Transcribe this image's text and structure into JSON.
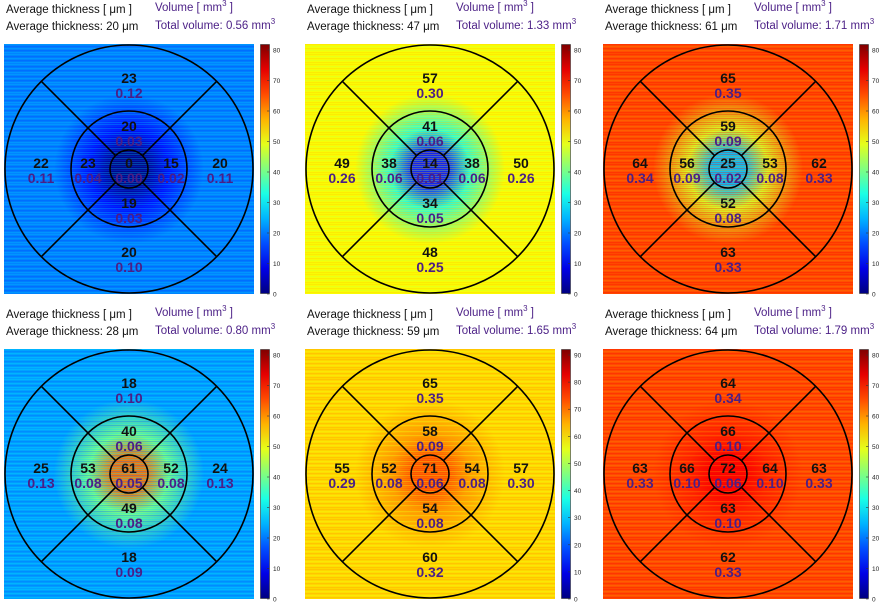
{
  "labels": {
    "avg_header": "Average thickness [ μm ]",
    "avg_prefix": "Average thickness: ",
    "unit": "μm",
    "vol_header": "Volume [ mm",
    "vol_exp": "3",
    "vol_header_close": " ]",
    "vol_prefix": "Total volume: ",
    "vol_unit": " mm"
  },
  "colors": {
    "thickness_text": "#111111",
    "volume_text": "#4b1f86",
    "grid_lines": "#000000"
  },
  "colormap": "jet",
  "panels": [
    {
      "avg_thickness": "20",
      "total_volume": "0.56",
      "colorbar": {
        "max": 80,
        "ticks": [
          "80",
          "70",
          "60",
          "50",
          "40",
          "30",
          "20",
          "10",
          "0"
        ]
      },
      "background_level": 0.25,
      "center_level": 0.0,
      "sectors": {
        "center": {
          "thickness": "0",
          "volume": "0.00"
        },
        "inner_superior": {
          "thickness": "20",
          "volume": "0.03"
        },
        "inner_nasal": {
          "thickness": "15",
          "volume": "0.02"
        },
        "inner_inferior": {
          "thickness": "19",
          "volume": "0.03"
        },
        "inner_temporal": {
          "thickness": "23",
          "volume": "0.04"
        },
        "outer_superior": {
          "thickness": "23",
          "volume": "0.12"
        },
        "outer_nasal": {
          "thickness": "20",
          "volume": "0.11"
        },
        "outer_inferior": {
          "thickness": "20",
          "volume": "0.10"
        },
        "outer_temporal": {
          "thickness": "22",
          "volume": "0.11"
        }
      }
    },
    {
      "avg_thickness": "47",
      "total_volume": "1.33",
      "colorbar": {
        "max": 80,
        "ticks": [
          "80",
          "70",
          "60",
          "50",
          "40",
          "30",
          "20",
          "10",
          "0"
        ]
      },
      "background_level": 0.62,
      "center_level": 0.15,
      "sectors": {
        "center": {
          "thickness": "14",
          "volume": "0.01"
        },
        "inner_superior": {
          "thickness": "41",
          "volume": "0.06"
        },
        "inner_nasal": {
          "thickness": "38",
          "volume": "0.06"
        },
        "inner_inferior": {
          "thickness": "34",
          "volume": "0.05"
        },
        "inner_temporal": {
          "thickness": "38",
          "volume": "0.06"
        },
        "outer_superior": {
          "thickness": "57",
          "volume": "0.30"
        },
        "outer_nasal": {
          "thickness": "50",
          "volume": "0.26"
        },
        "outer_inferior": {
          "thickness": "48",
          "volume": "0.25"
        },
        "outer_temporal": {
          "thickness": "49",
          "volume": "0.26"
        }
      }
    },
    {
      "avg_thickness": "61",
      "total_volume": "1.71",
      "colorbar": {
        "max": 80,
        "ticks": [
          "80",
          "70",
          "60",
          "50",
          "40",
          "30",
          "20",
          "10",
          "0"
        ]
      },
      "background_level": 0.8,
      "center_level": 0.32,
      "sectors": {
        "center": {
          "thickness": "25",
          "volume": "0.02"
        },
        "inner_superior": {
          "thickness": "59",
          "volume": "0.09"
        },
        "inner_nasal": {
          "thickness": "53",
          "volume": "0.08"
        },
        "inner_inferior": {
          "thickness": "52",
          "volume": "0.08"
        },
        "inner_temporal": {
          "thickness": "56",
          "volume": "0.09"
        },
        "outer_superior": {
          "thickness": "65",
          "volume": "0.35"
        },
        "outer_nasal": {
          "thickness": "62",
          "volume": "0.33"
        },
        "outer_inferior": {
          "thickness": "63",
          "volume": "0.33"
        },
        "outer_temporal": {
          "thickness": "64",
          "volume": "0.34"
        }
      }
    },
    {
      "avg_thickness": "28",
      "total_volume": "0.80",
      "colorbar": {
        "max": 80,
        "ticks": [
          "80",
          "70",
          "60",
          "50",
          "40",
          "30",
          "20",
          "10",
          "0"
        ]
      },
      "background_level": 0.28,
      "center_level": 0.76,
      "sectors": {
        "center": {
          "thickness": "61",
          "volume": "0.05"
        },
        "inner_superior": {
          "thickness": "40",
          "volume": "0.06"
        },
        "inner_nasal": {
          "thickness": "52",
          "volume": "0.08"
        },
        "inner_inferior": {
          "thickness": "49",
          "volume": "0.08"
        },
        "inner_temporal": {
          "thickness": "53",
          "volume": "0.08"
        },
        "outer_superior": {
          "thickness": "18",
          "volume": "0.10"
        },
        "outer_nasal": {
          "thickness": "24",
          "volume": "0.13"
        },
        "outer_inferior": {
          "thickness": "18",
          "volume": "0.09"
        },
        "outer_temporal": {
          "thickness": "25",
          "volume": "0.13"
        }
      }
    },
    {
      "avg_thickness": "59",
      "total_volume": "1.65",
      "colorbar": {
        "max": 90,
        "ticks": [
          "90",
          "80",
          "70",
          "60",
          "50",
          "40",
          "30",
          "20",
          "10",
          "0"
        ]
      },
      "background_level": 0.66,
      "center_level": 0.8,
      "sectors": {
        "center": {
          "thickness": "71",
          "volume": "0.06"
        },
        "inner_superior": {
          "thickness": "58",
          "volume": "0.09"
        },
        "inner_nasal": {
          "thickness": "54",
          "volume": "0.08"
        },
        "inner_inferior": {
          "thickness": "54",
          "volume": "0.08"
        },
        "inner_temporal": {
          "thickness": "52",
          "volume": "0.08"
        },
        "outer_superior": {
          "thickness": "65",
          "volume": "0.35"
        },
        "outer_nasal": {
          "thickness": "57",
          "volume": "0.30"
        },
        "outer_inferior": {
          "thickness": "60",
          "volume": "0.32"
        },
        "outer_temporal": {
          "thickness": "55",
          "volume": "0.29"
        }
      }
    },
    {
      "avg_thickness": "64",
      "total_volume": "1.79",
      "colorbar": {
        "max": 80,
        "ticks": [
          "80",
          "70",
          "60",
          "50",
          "40",
          "30",
          "20",
          "10",
          "0"
        ]
      },
      "background_level": 0.8,
      "center_level": 0.88,
      "sectors": {
        "center": {
          "thickness": "72",
          "volume": "0.06"
        },
        "inner_superior": {
          "thickness": "66",
          "volume": "0.10"
        },
        "inner_nasal": {
          "thickness": "64",
          "volume": "0.10"
        },
        "inner_inferior": {
          "thickness": "63",
          "volume": "0.10"
        },
        "inner_temporal": {
          "thickness": "66",
          "volume": "0.10"
        },
        "outer_superior": {
          "thickness": "64",
          "volume": "0.34"
        },
        "outer_nasal": {
          "thickness": "63",
          "volume": "0.33"
        },
        "outer_inferior": {
          "thickness": "62",
          "volume": "0.33"
        },
        "outer_temporal": {
          "thickness": "63",
          "volume": "0.33"
        }
      }
    }
  ]
}
